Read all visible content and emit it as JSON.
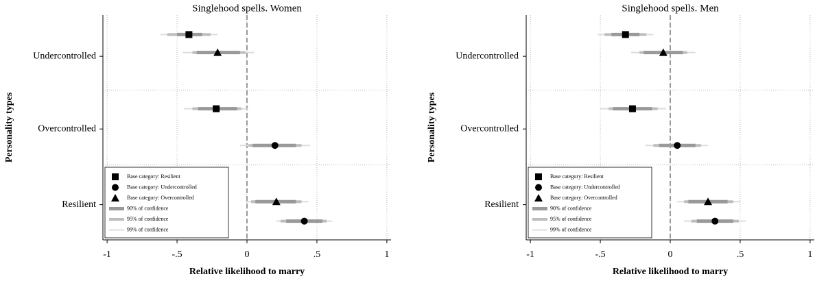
{
  "chart_data": [
    {
      "type": "coefplot",
      "title": "Singlehood spells. Women",
      "xlabel": "Relative likelihood to marry",
      "ylabel": "Personality types",
      "categories": [
        "Undercontrolled",
        "Overcontrolled",
        "Resilient"
      ],
      "xlim": [
        -1.03,
        1.03
      ],
      "xticks": [
        {
          "value": -1,
          "label": "-1"
        },
        {
          "value": -0.5,
          "label": "-.5"
        },
        0,
        {
          "value": 0.5,
          "label": ".5"
        },
        1
      ],
      "xline": 0,
      "grid": true,
      "legend": "lower left",
      "intervals": [
        {
          "name": "90% of confidence",
          "key": "ci90",
          "color": "#999999"
        },
        {
          "name": "95% of confidence",
          "key": "ci95",
          "color": "#bdbdbd"
        },
        {
          "name": "99% of confidence",
          "key": "ci99",
          "color": "#dcdcdc"
        }
      ],
      "series": [
        {
          "name": "Base category: Resilient",
          "marker": "square",
          "color": "#000000",
          "values": [
            -0.415,
            -0.22,
            null
          ],
          "ci90": [
            [
              -0.5,
              -0.32
            ],
            [
              -0.35,
              -0.07
            ],
            null
          ],
          "ci95": [
            [
              -0.57,
              -0.26
            ],
            [
              -0.39,
              -0.04
            ],
            null
          ],
          "ci99": [
            [
              -0.62,
              -0.21
            ],
            [
              -0.45,
              0.01
            ],
            null
          ]
        },
        {
          "name": "Base category: Undercontrolled",
          "marker": "circle",
          "color": "#000000",
          "values": [
            null,
            0.2,
            0.41
          ],
          "ci90": [
            null,
            [
              0.04,
              0.35
            ],
            [
              0.28,
              0.54
            ]
          ],
          "ci95": [
            null,
            [
              0.01,
              0.39
            ],
            [
              0.24,
              0.57
            ]
          ],
          "ci99": [
            null,
            [
              -0.05,
              0.45
            ],
            [
              0.21,
              0.61
            ]
          ]
        },
        {
          "name": "Base category: Overcontrolled",
          "marker": "triangle",
          "color": "#000000",
          "values": [
            -0.21,
            null,
            0.21
          ],
          "ci90": [
            [
              -0.36,
              -0.05
            ],
            null,
            [
              0.06,
              0.35
            ]
          ],
          "ci95": [
            [
              -0.39,
              -0.01
            ],
            null,
            [
              0.03,
              0.39
            ]
          ],
          "ci99": [
            [
              -0.46,
              0.05
            ],
            null,
            [
              -0.01,
              0.44
            ]
          ]
        }
      ]
    },
    {
      "type": "coefplot",
      "title": "Singlehood spells. Men",
      "xlabel": "Relative likelihood to marry",
      "ylabel": "Personality types",
      "categories": [
        "Undercontrolled",
        "Overcontrolled",
        "Resilient"
      ],
      "xlim": [
        -1.03,
        1.03
      ],
      "xticks": [
        {
          "value": -1,
          "label": "-1"
        },
        {
          "value": -0.5,
          "label": "-.5"
        },
        0,
        {
          "value": 0.5,
          "label": ".5"
        },
        1
      ],
      "xline": 0,
      "grid": true,
      "legend": "lower left",
      "intervals": [
        {
          "name": "90% of confidence",
          "key": "ci90",
          "color": "#999999"
        },
        {
          "name": "95% of confidence",
          "key": "ci95",
          "color": "#bdbdbd"
        },
        {
          "name": "99% of confidence",
          "key": "ci99",
          "color": "#dcdcdc"
        }
      ],
      "series": [
        {
          "name": "Base category: Resilient",
          "marker": "square",
          "color": "#000000",
          "values": [
            -0.32,
            -0.27,
            null
          ],
          "ci90": [
            [
              -0.42,
              -0.22
            ],
            [
              -0.41,
              -0.13
            ],
            null
          ],
          "ci95": [
            [
              -0.47,
              -0.17
            ],
            [
              -0.44,
              -0.09
            ],
            null
          ],
          "ci99": [
            [
              -0.52,
              -0.12
            ],
            [
              -0.5,
              -0.03
            ],
            null
          ]
        },
        {
          "name": "Base category: Undercontrolled",
          "marker": "circle",
          "color": "#000000",
          "values": [
            null,
            0.05,
            0.32
          ],
          "ci90": [
            null,
            [
              -0.08,
              0.18
            ],
            [
              0.19,
              0.45
            ]
          ],
          "ci95": [
            null,
            [
              -0.12,
              0.22
            ],
            [
              0.15,
              0.49
            ]
          ],
          "ci99": [
            null,
            [
              -0.18,
              0.27
            ],
            [
              0.1,
              0.54
            ]
          ]
        },
        {
          "name": "Base category: Overcontrolled",
          "marker": "triangle",
          "color": "#000000",
          "values": [
            -0.05,
            null,
            0.27
          ],
          "ci90": [
            [
              -0.19,
              0.09
            ],
            null,
            [
              0.13,
              0.41
            ]
          ],
          "ci95": [
            [
              -0.22,
              0.12
            ],
            null,
            [
              0.1,
              0.45
            ]
          ],
          "ci99": [
            [
              -0.28,
              0.18
            ],
            null,
            [
              0.05,
              0.5
            ]
          ]
        }
      ]
    }
  ]
}
